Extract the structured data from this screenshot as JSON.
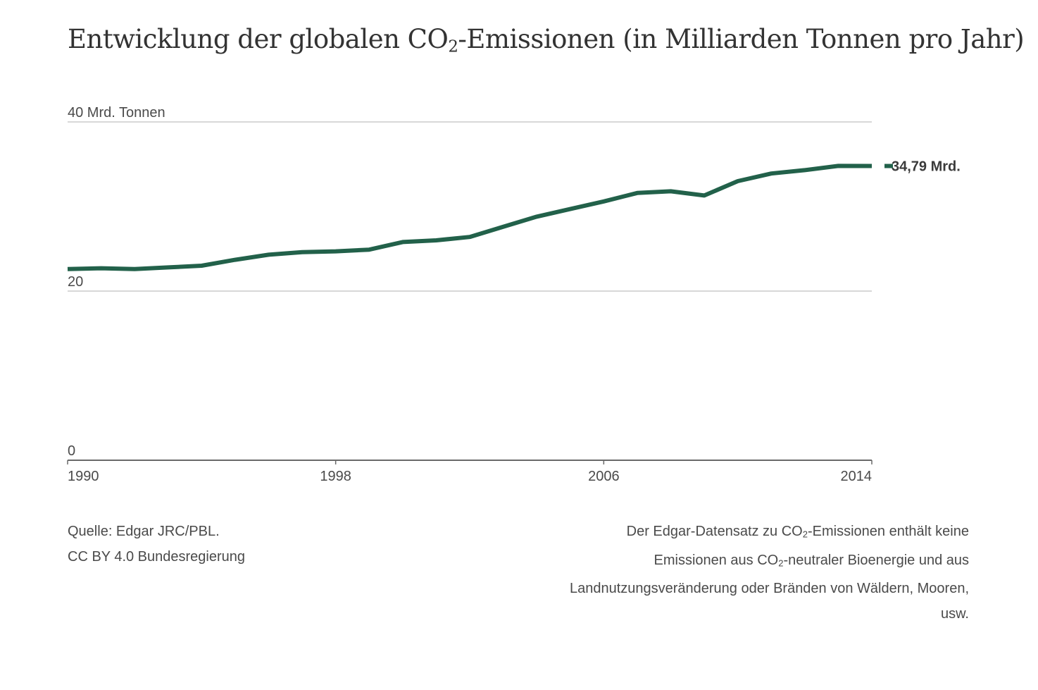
{
  "title": {
    "pre": "Entwicklung der globalen CO",
    "sub": "2",
    "post": "-Emissionen (in Milliarden Tonnen pro Jahr)"
  },
  "chart_data": {
    "type": "line",
    "title": "Entwicklung der globalen CO2-Emissionen (in Milliarden Tonnen pro Jahr)",
    "ylabel": "40 Mrd. Tonnen",
    "ylim": [
      0,
      40
    ],
    "y_ticks": [
      {
        "value": 0,
        "label": "0"
      },
      {
        "value": 20,
        "label": "20"
      },
      {
        "value": 40,
        "label": "40 Mrd. Tonnen"
      }
    ],
    "xlim": [
      1990,
      2014
    ],
    "x_ticks": [
      {
        "value": 1990,
        "label": "1990"
      },
      {
        "value": 1998,
        "label": "1998"
      },
      {
        "value": 2006,
        "label": "2006"
      },
      {
        "value": 2014,
        "label": "2014"
      }
    ],
    "grid": true,
    "line_color": "#22614a",
    "series": [
      {
        "x": [
          1990,
          1991,
          1992,
          1993,
          1994,
          1995,
          1996,
          1997,
          1998,
          1999,
          2000,
          2001,
          2002,
          2003,
          2004,
          2005,
          2006,
          2007,
          2008,
          2009,
          2010,
          2011,
          2012,
          2013,
          2014
        ],
        "values": [
          22.6,
          22.7,
          22.6,
          22.8,
          23.0,
          23.7,
          24.3,
          24.6,
          24.7,
          24.9,
          25.8,
          26.0,
          26.4,
          27.6,
          28.8,
          29.7,
          30.6,
          31.6,
          31.8,
          31.3,
          33.0,
          33.9,
          34.3,
          34.8,
          34.79
        ]
      }
    ],
    "end_label": "34,79 Mrd."
  },
  "source": {
    "line1": "Quelle: Edgar JRC/PBL.",
    "line2": "CC BY 4.0 Bundesregierung"
  },
  "note": {
    "line1_pre": "Der Edgar-Datensatz zu CO",
    "line1_sub": "2",
    "line1_post": "-Emissionen enthält keine",
    "line2_pre": "Emissionen aus CO",
    "line2_sub": "2",
    "line2_post": "-neutraler Bioenergie und aus",
    "line3": "Landnutzungsveränderung oder Bränden von Wäldern, Mooren,",
    "line4": "usw."
  }
}
